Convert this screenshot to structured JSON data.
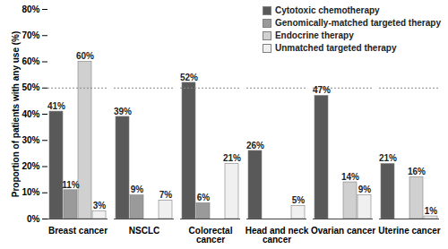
{
  "chart_data": {
    "type": "bar",
    "y_label": "Proportion of patients with any use (%)",
    "categories": [
      "Breast cancer",
      "NSCLC",
      "Colorectal cancer",
      "Head and neck cancer",
      "Ovarian cancer",
      "Uterine cancer"
    ],
    "series": [
      {
        "name": "Cytotoxic chemotherapy",
        "color": "#595959",
        "values": [
          41,
          39,
          52,
          26,
          47,
          21
        ],
        "value_labels": [
          "41%",
          "39%",
          "52%",
          "26%",
          "47%",
          "21%"
        ]
      },
      {
        "name": "Genomically-matched targeted therapy",
        "color": "#9a9a9a",
        "values": [
          11,
          9,
          6,
          null,
          null,
          null
        ],
        "value_labels": [
          "11%",
          "9%",
          "6%",
          null,
          null,
          null
        ]
      },
      {
        "name": "Endocrine therapy",
        "color": "#d0d0d0",
        "values": [
          60,
          null,
          null,
          null,
          14,
          16
        ],
        "value_labels": [
          "60%",
          null,
          null,
          null,
          "14%",
          "16%"
        ]
      },
      {
        "name": "Unmatched targeted therapy",
        "color": "#f0f0f0",
        "values": [
          3,
          7,
          21,
          5,
          9,
          1
        ],
        "value_labels": [
          "3%",
          "7%",
          "21%",
          "5%",
          "9%",
          "1%"
        ]
      }
    ],
    "ylim": [
      0,
      80
    ],
    "yticks": [
      {
        "value": 0,
        "label": "0%"
      },
      {
        "value": 10,
        "label": "10%"
      },
      {
        "value": 20,
        "label": "20%"
      },
      {
        "value": 30,
        "label": "30%"
      },
      {
        "value": 40,
        "label": "40%"
      },
      {
        "value": 50,
        "label": "50%"
      },
      {
        "value": 60,
        "label": "60%"
      },
      {
        "value": 70,
        "label": "70%"
      },
      {
        "value": 80,
        "label": "80%"
      }
    ],
    "reference_lines": [
      50
    ],
    "legend": "top-right",
    "data_labels": true,
    "grid": false
  }
}
